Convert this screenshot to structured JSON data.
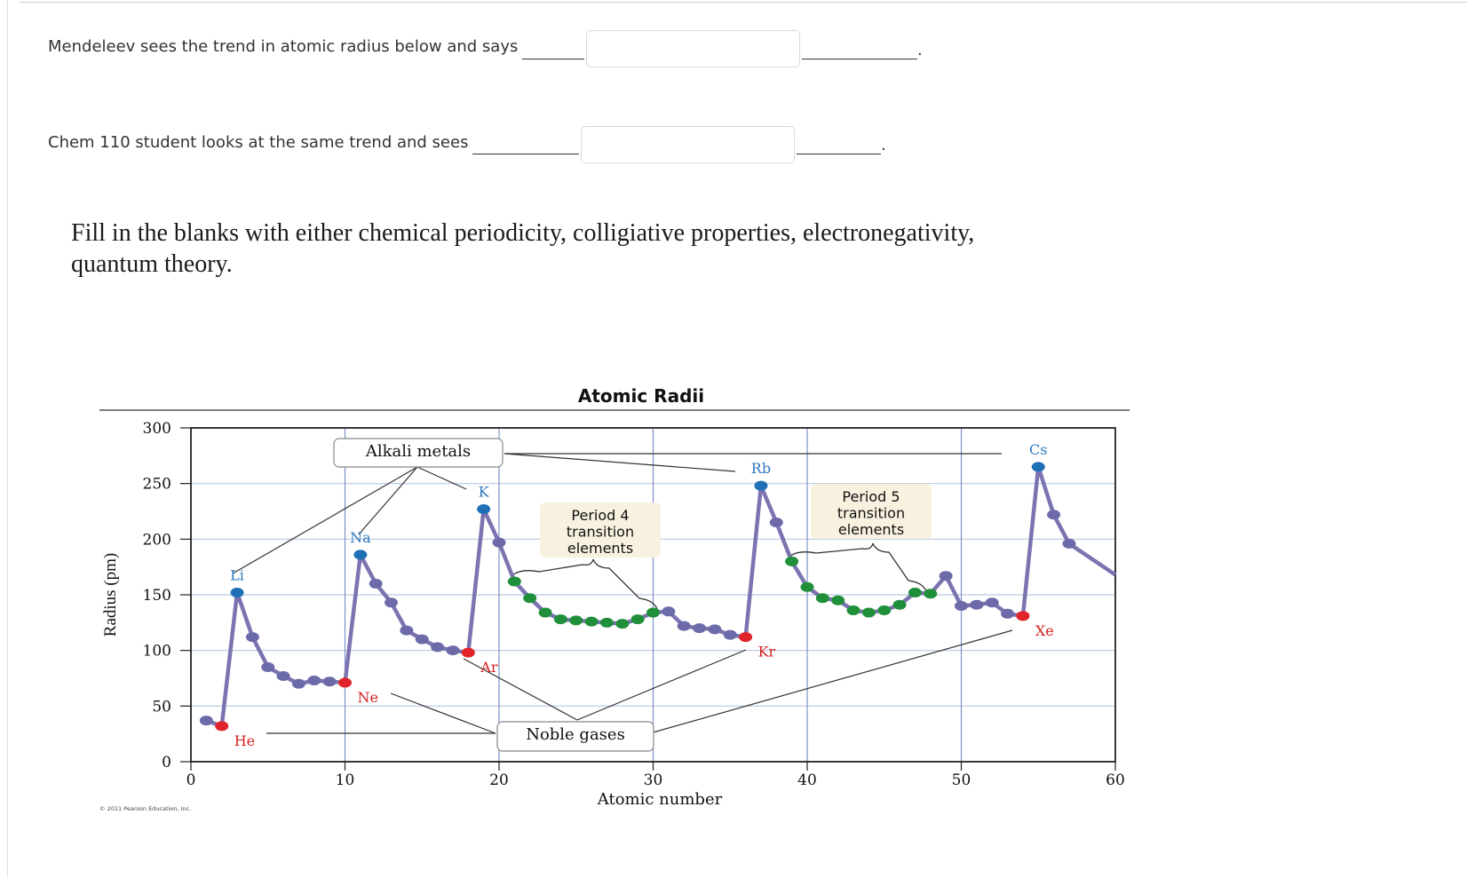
{
  "questions": {
    "q1_text": "Mendeleev sees the trend in atomic radius below and says",
    "q1_value": "",
    "q2_text": "Chem 110 student looks at the same trend and sees",
    "q2_value": "",
    "period": "."
  },
  "instructions": "Fill in the blanks with either chemical periodicity, colligiative properties, electronegativity, quantum theory.",
  "chart_data": {
    "type": "line",
    "title": "Atomic Radii",
    "xlabel": "Atomic number",
    "ylabel": "Radius (pm)",
    "xlim": [
      0,
      60
    ],
    "ylim": [
      0,
      300
    ],
    "x_ticks": [
      "0",
      "10",
      "20",
      "30",
      "40",
      "50",
      "60"
    ],
    "y_ticks": [
      "0",
      "50",
      "100",
      "150",
      "200",
      "250",
      "300"
    ],
    "grid": true,
    "series": [
      {
        "points": [
          [
            1,
            37
          ],
          [
            2,
            32
          ],
          [
            3,
            152
          ],
          [
            4,
            112
          ],
          [
            5,
            85
          ],
          [
            6,
            77
          ],
          [
            7,
            70
          ],
          [
            8,
            73
          ],
          [
            9,
            72
          ],
          [
            10,
            71
          ],
          [
            11,
            186
          ],
          [
            12,
            160
          ],
          [
            13,
            143
          ],
          [
            14,
            118
          ],
          [
            15,
            110
          ],
          [
            16,
            103
          ],
          [
            17,
            100
          ],
          [
            18,
            98
          ],
          [
            19,
            227
          ],
          [
            20,
            197
          ],
          [
            21,
            162
          ],
          [
            22,
            147
          ],
          [
            23,
            134
          ],
          [
            24,
            128
          ],
          [
            25,
            127
          ],
          [
            26,
            126
          ],
          [
            27,
            125
          ],
          [
            28,
            124
          ],
          [
            29,
            128
          ],
          [
            30,
            134
          ],
          [
            31,
            135
          ],
          [
            32,
            122
          ],
          [
            33,
            120
          ],
          [
            34,
            119
          ],
          [
            35,
            114
          ],
          [
            36,
            112
          ],
          [
            37,
            248
          ],
          [
            38,
            215
          ],
          [
            39,
            180
          ],
          [
            40,
            157
          ],
          [
            41,
            147
          ],
          [
            42,
            145
          ],
          [
            43,
            136
          ],
          [
            44,
            134
          ],
          [
            45,
            136
          ],
          [
            46,
            141
          ],
          [
            47,
            152
          ],
          [
            48,
            151
          ],
          [
            49,
            167
          ],
          [
            50,
            140
          ],
          [
            51,
            141
          ],
          [
            52,
            143
          ],
          [
            53,
            133
          ],
          [
            54,
            131
          ],
          [
            55,
            265
          ],
          [
            56,
            222
          ],
          [
            57,
            196
          ],
          [
            60,
            168
          ]
        ]
      }
    ],
    "alkali_metals": [
      3,
      11,
      19,
      37,
      55
    ],
    "noble_gases": [
      2,
      10,
      18,
      36,
      54
    ],
    "transition_elements": [
      21,
      22,
      23,
      24,
      25,
      26,
      27,
      28,
      29,
      30,
      39,
      40,
      41,
      42,
      43,
      44,
      45,
      46,
      47,
      48
    ],
    "element_labels": [
      {
        "text": "Li",
        "x": 3,
        "color": "#2e78c0"
      },
      {
        "text": "Na",
        "x": 11,
        "color": "#2e78c0"
      },
      {
        "text": "K",
        "x": 19,
        "color": "#2e78c0"
      },
      {
        "text": "Rb",
        "x": 37,
        "color": "#2e78c0"
      },
      {
        "text": "Cs",
        "x": 55,
        "color": "#2e78c0"
      },
      {
        "text": "He",
        "x": 2,
        "color": "#d52020"
      },
      {
        "text": "Ne",
        "x": 10,
        "color": "#d52020"
      },
      {
        "text": "Ar",
        "x": 18,
        "color": "#d52020"
      },
      {
        "text": "Kr",
        "x": 36,
        "color": "#d52020"
      },
      {
        "text": "Xe",
        "x": 54,
        "color": "#d52020"
      }
    ],
    "annotations": {
      "alkali": "Alkali metals",
      "noble": "Noble gases",
      "period4": [
        "Period 4",
        "transition",
        "elements"
      ],
      "period5": [
        "Period 5",
        "transition",
        "elements"
      ]
    },
    "copyright": "© 2011 Pearson Education, Inc.",
    "colors": {
      "line": "#7b74b0",
      "alkali": "#1f6fb6",
      "noble": "#e0242a",
      "transition": "#1f8f3a",
      "other": "#6c6aa8",
      "grid": "#b8c8e2",
      "grid_major": "#7b92c6",
      "callout_fill": "#f8f1df"
    }
  }
}
